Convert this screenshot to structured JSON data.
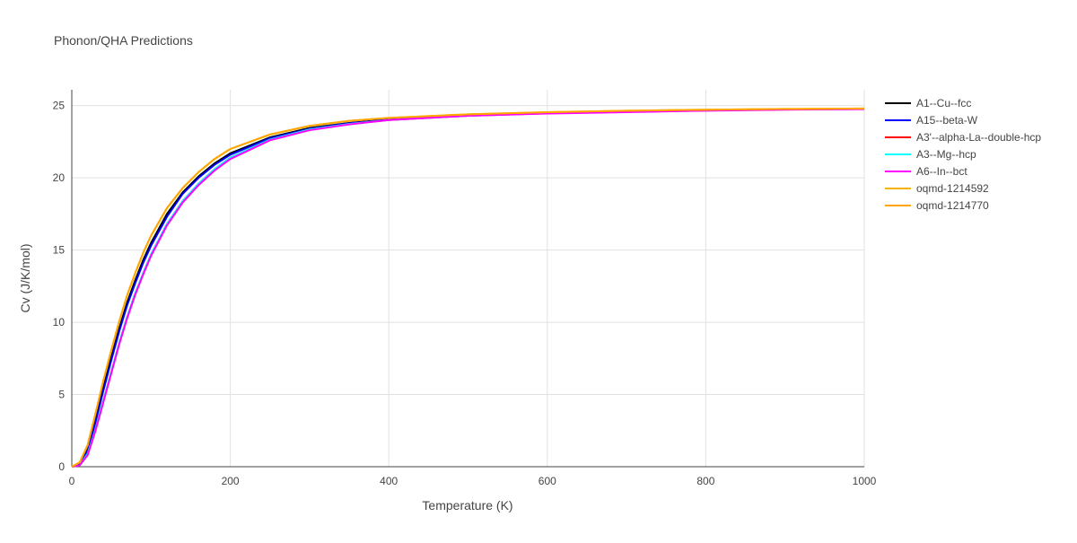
{
  "chart_data": {
    "type": "line",
    "title": "Phonon/QHA Predictions",
    "x_label": "Temperature (K)",
    "y_label": "Cv (J/K/mol)",
    "x": [
      0,
      10,
      20,
      30,
      40,
      50,
      60,
      70,
      80,
      90,
      100,
      120,
      140,
      160,
      180,
      200,
      250,
      300,
      350,
      400,
      500,
      600,
      700,
      800,
      900,
      1000
    ],
    "xlim": [
      0,
      1000
    ],
    "ylim": [
      0,
      26.1
    ],
    "xticks": [
      0,
      200,
      400,
      600,
      800,
      1000
    ],
    "yticks": [
      0,
      5,
      10,
      15,
      20,
      25
    ],
    "grid": true,
    "series": [
      {
        "name": "A1--Cu--fcc",
        "color": "#000000",
        "values": [
          0,
          0.2,
          1.2,
          3.3,
          5.5,
          7.6,
          9.6,
          11.4,
          12.9,
          14.3,
          15.5,
          17.5,
          19.0,
          20.1,
          21.0,
          21.7,
          22.8,
          23.45,
          23.8,
          24.05,
          24.35,
          24.5,
          24.6,
          24.68,
          24.74,
          24.78
        ]
      },
      {
        "name": "A15--beta-W",
        "color": "#0000ff",
        "values": [
          0,
          0.2,
          1.1,
          3.1,
          5.3,
          7.4,
          9.4,
          11.2,
          12.7,
          14.1,
          15.3,
          17.3,
          18.9,
          20.0,
          20.9,
          21.6,
          22.75,
          23.4,
          23.78,
          24.03,
          24.33,
          24.5,
          24.6,
          24.68,
          24.74,
          24.78
        ]
      },
      {
        "name": "A3'--alpha-La--double-hcp",
        "color": "#ff0000",
        "values": [
          0,
          0.1,
          0.9,
          2.6,
          4.6,
          6.6,
          8.6,
          10.4,
          12.0,
          13.4,
          14.7,
          16.8,
          18.4,
          19.6,
          20.6,
          21.4,
          22.65,
          23.35,
          23.73,
          24.0,
          24.3,
          24.47,
          24.57,
          24.66,
          24.73,
          24.77
        ]
      },
      {
        "name": "A3--Mg--hcp",
        "color": "#00ffff",
        "values": [
          0,
          0.1,
          0.9,
          2.6,
          4.6,
          6.6,
          8.6,
          10.4,
          12.0,
          13.4,
          14.7,
          16.8,
          18.4,
          19.6,
          20.6,
          21.4,
          22.65,
          23.35,
          23.73,
          24.0,
          24.3,
          24.47,
          24.57,
          24.66,
          24.73,
          24.77
        ]
      },
      {
        "name": "A6--In--bct",
        "color": "#ff00ff",
        "values": [
          0,
          0.1,
          0.8,
          2.5,
          4.5,
          6.5,
          8.5,
          10.3,
          11.9,
          13.3,
          14.6,
          16.7,
          18.3,
          19.5,
          20.5,
          21.3,
          22.6,
          23.3,
          23.7,
          24.0,
          24.3,
          24.45,
          24.55,
          24.65,
          24.72,
          24.76
        ]
      },
      {
        "name": "oqmd-1214592",
        "color": "#f4b400",
        "values": [
          0,
          0.3,
          1.5,
          3.7,
          6.0,
          8.1,
          10.1,
          11.9,
          13.4,
          14.8,
          16.0,
          17.9,
          19.3,
          20.4,
          21.3,
          22.0,
          23.0,
          23.6,
          23.95,
          24.15,
          24.4,
          24.55,
          24.65,
          24.72,
          24.77,
          24.8
        ]
      },
      {
        "name": "oqmd-1214770",
        "color": "#ffa500",
        "values": [
          0,
          0.3,
          1.5,
          3.7,
          6.0,
          8.1,
          10.1,
          11.9,
          13.4,
          14.8,
          16.0,
          17.9,
          19.3,
          20.4,
          21.3,
          22.0,
          23.0,
          23.6,
          23.95,
          24.15,
          24.4,
          24.55,
          24.65,
          24.72,
          24.77,
          24.8
        ]
      }
    ]
  }
}
